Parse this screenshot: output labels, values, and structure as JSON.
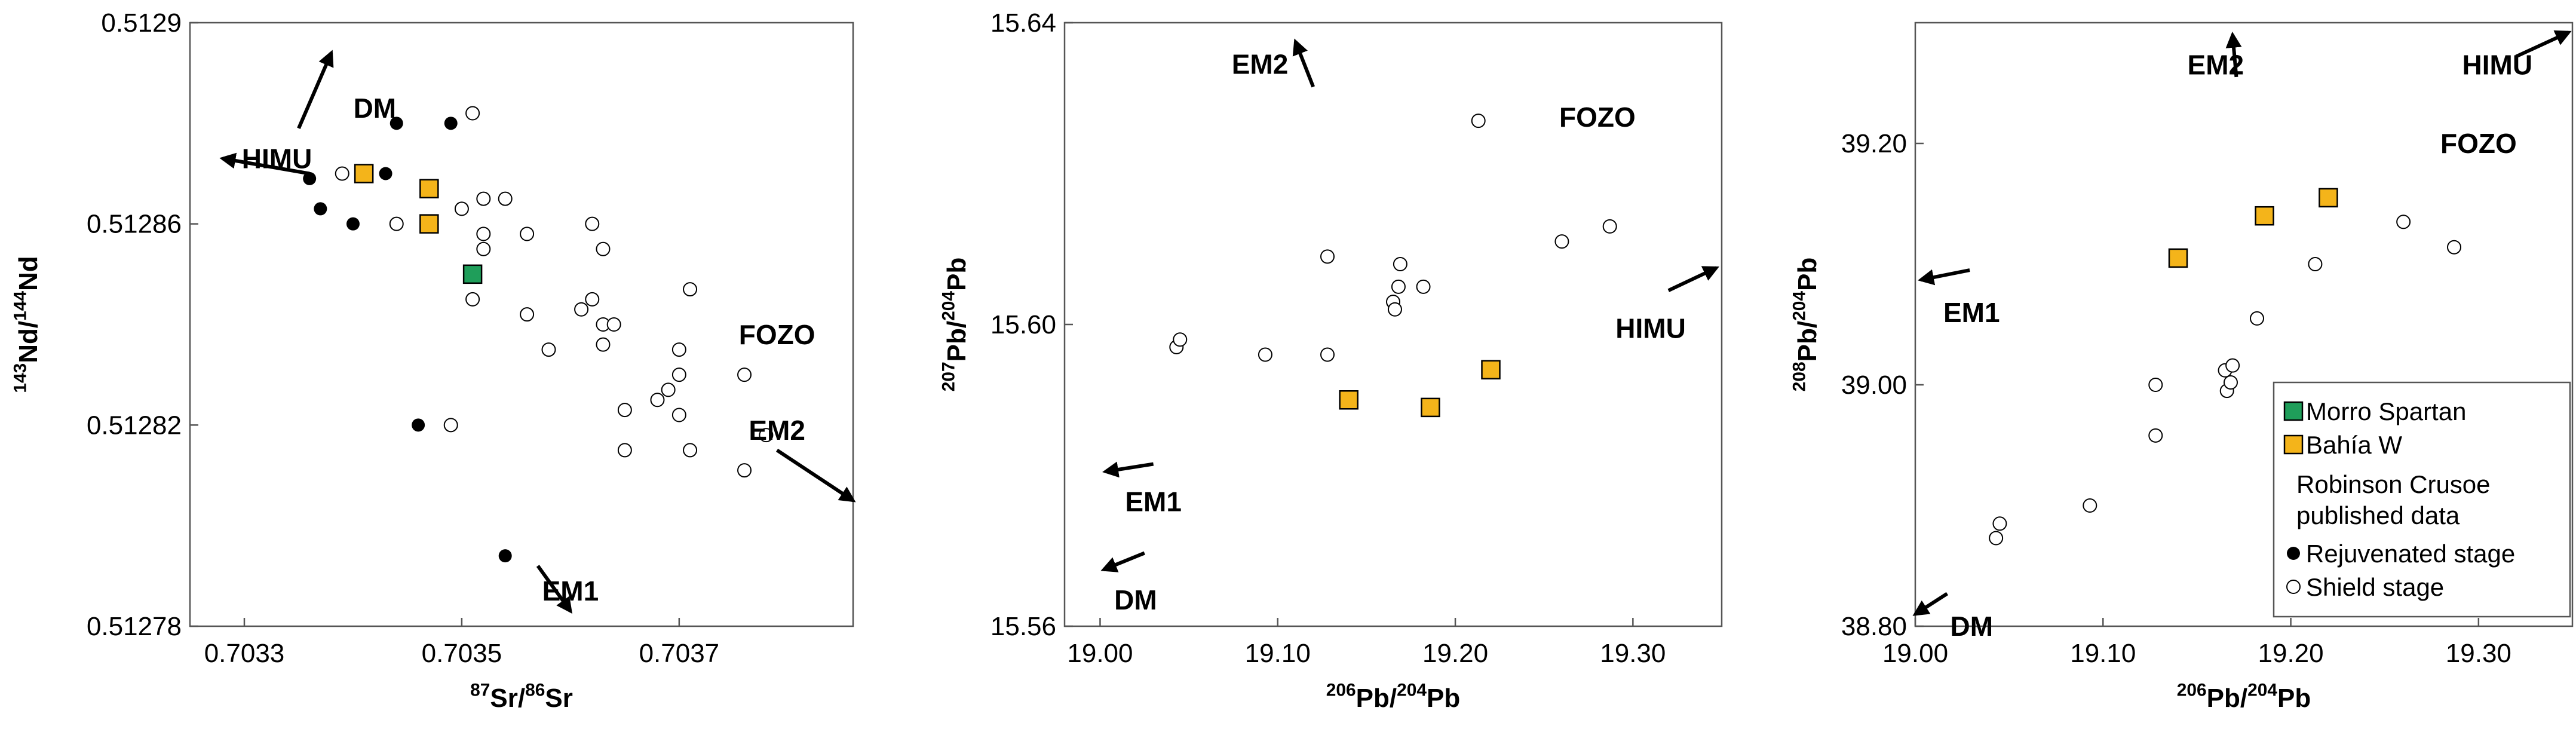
{
  "chart_data": [
    {
      "type": "scatter",
      "xlabel_sup1": "87",
      "xlabel_el1": "Sr/",
      "xlabel_sup2": "86",
      "xlabel_el2": "Sr",
      "ylabel_sup1": "143",
      "ylabel_el1": "Nd/",
      "ylabel_sup2": "144",
      "ylabel_el2": "Nd",
      "xlim": [
        0.70325,
        0.70386
      ],
      "ylim": [
        0.51278,
        0.5129
      ],
      "xticks": [
        {
          "v": 0.7033,
          "label": "0.7033"
        },
        {
          "v": 0.7035,
          "label": "0.7035"
        },
        {
          "v": 0.7037,
          "label": "0.7037"
        }
      ],
      "yticks": [
        {
          "v": 0.51278,
          "label": "0.51278"
        },
        {
          "v": 0.51282,
          "label": "0.51282"
        },
        {
          "v": 0.51286,
          "label": "0.51286"
        },
        {
          "v": 0.5129,
          "label": "0.5129"
        }
      ],
      "series": [
        {
          "name": "Morro Spartan",
          "marker": "square",
          "color": "#1f9e5a",
          "points": [
            [
              0.70351,
              0.51285
            ]
          ]
        },
        {
          "name": "Bahía W",
          "marker": "square",
          "color": "#f4b41a",
          "points": [
            [
              0.70341,
              0.51287
            ],
            [
              0.70347,
              0.512867
            ],
            [
              0.70347,
              0.51286
            ]
          ]
        },
        {
          "name": "Rejuvenated stage",
          "marker": "filled-circle",
          "color": "#000000",
          "points": [
            [
              0.70336,
              0.512869
            ],
            [
              0.70337,
              0.512863
            ],
            [
              0.7034,
              0.51286
            ],
            [
              0.70343,
              0.51287
            ],
            [
              0.70344,
              0.51288
            ],
            [
              0.70349,
              0.51288
            ],
            [
              0.70346,
              0.51282
            ],
            [
              0.70354,
              0.512794
            ]
          ]
        },
        {
          "name": "Shield stage",
          "marker": "open-circle",
          "color": "#000000",
          "points": [
            [
              0.70339,
              0.51287
            ],
            [
              0.70344,
              0.51286
            ],
            [
              0.70351,
              0.512882
            ],
            [
              0.7035,
              0.512863
            ],
            [
              0.70352,
              0.512865
            ],
            [
              0.70354,
              0.512865
            ],
            [
              0.70352,
              0.512858
            ],
            [
              0.70352,
              0.512855
            ],
            [
              0.70351,
              0.512845
            ],
            [
              0.70356,
              0.512858
            ],
            [
              0.70356,
              0.512842
            ],
            [
              0.70358,
              0.512835
            ],
            [
              0.70362,
              0.51286
            ],
            [
              0.70363,
              0.512855
            ],
            [
              0.70361,
              0.512843
            ],
            [
              0.70362,
              0.512845
            ],
            [
              0.70363,
              0.51284
            ],
            [
              0.70364,
              0.51284
            ],
            [
              0.70363,
              0.512836
            ],
            [
              0.70365,
              0.512823
            ],
            [
              0.70365,
              0.512815
            ],
            [
              0.70368,
              0.512825
            ],
            [
              0.70369,
              0.512827
            ],
            [
              0.7037,
              0.51283
            ],
            [
              0.7037,
              0.512835
            ],
            [
              0.7037,
              0.512822
            ],
            [
              0.70371,
              0.512847
            ],
            [
              0.70371,
              0.512815
            ],
            [
              0.70376,
              0.51283
            ],
            [
              0.70376,
              0.512811
            ],
            [
              0.70378,
              0.512818
            ],
            [
              0.70349,
              0.51282
            ]
          ]
        }
      ],
      "annotations": [
        {
          "text": "DM",
          "x": 0.70342,
          "y": 0.512883,
          "ax": [
            0.70335,
            0.70338
          ],
          "ay": [
            0.512879,
            0.512894
          ]
        },
        {
          "text": "HIMU",
          "x": 0.70333,
          "y": 0.512873,
          "ax": [
            0.70336,
            0.70328
          ],
          "ay": [
            0.51287,
            0.512873
          ]
        },
        {
          "text": "FOZO",
          "x": 0.70379,
          "y": 0.512838,
          "ax": null,
          "ay": null
        },
        {
          "text": "EM2",
          "x": 0.70379,
          "y": 0.512819,
          "ax": [
            0.70379,
            0.70386
          ],
          "ay": [
            0.512815,
            0.512805
          ]
        },
        {
          "text": "EM1",
          "x": 0.7036,
          "y": 0.512787,
          "ax": [
            0.70357,
            0.7036
          ],
          "ay": [
            0.512792,
            0.512783
          ]
        }
      ]
    },
    {
      "type": "scatter",
      "xlabel_sup1": "206",
      "xlabel_el1": "Pb/",
      "xlabel_sup2": "204",
      "xlabel_el2": "Pb",
      "ylabel_sup1": "207",
      "ylabel_el1": "Pb/",
      "ylabel_sup2": "204",
      "ylabel_el2": "Pb",
      "xlim": [
        18.98,
        19.35
      ],
      "ylim": [
        15.56,
        15.64
      ],
      "xticks": [
        {
          "v": 19.0,
          "label": "19.00"
        },
        {
          "v": 19.1,
          "label": "19.10"
        },
        {
          "v": 19.2,
          "label": "19.20"
        },
        {
          "v": 19.3,
          "label": "19.30"
        }
      ],
      "yticks": [
        {
          "v": 15.56,
          "label": "15.56"
        },
        {
          "v": 15.6,
          "label": "15.60"
        },
        {
          "v": 15.64,
          "label": "15.64"
        }
      ],
      "series": [
        {
          "name": "Bahía W",
          "marker": "square",
          "color": "#f4b41a",
          "points": [
            [
              19.14,
              15.59
            ],
            [
              19.186,
              15.589
            ],
            [
              19.22,
              15.594
            ]
          ]
        },
        {
          "name": "Shield stage",
          "marker": "open-circle",
          "color": "#000000",
          "points": [
            [
              19.043,
              15.597
            ],
            [
              19.045,
              15.598
            ],
            [
              19.093,
              15.596
            ],
            [
              19.128,
              15.596
            ],
            [
              19.128,
              15.609
            ],
            [
              19.165,
              15.603
            ],
            [
              19.166,
              15.602
            ],
            [
              19.168,
              15.605
            ],
            [
              19.169,
              15.608
            ],
            [
              19.182,
              15.605
            ],
            [
              19.213,
              15.627
            ],
            [
              19.26,
              15.611
            ],
            [
              19.287,
              15.613
            ]
          ]
        }
      ],
      "annotations": [
        {
          "text": "EM2",
          "x": 19.09,
          "y": 15.6345,
          "ax": [
            19.12,
            19.11
          ],
          "ay": [
            15.6315,
            15.6375
          ]
        },
        {
          "text": "FOZO",
          "x": 19.28,
          "y": 15.6275,
          "ax": null,
          "ay": null
        },
        {
          "text": "HIMU",
          "x": 19.31,
          "y": 15.5995,
          "ax": [
            19.32,
            19.347
          ],
          "ay": [
            15.6045,
            15.6075
          ]
        },
        {
          "text": "EM1",
          "x": 19.03,
          "y": 15.5765,
          "ax": [
            19.03,
            19.003
          ],
          "ay": [
            15.5815,
            15.5805
          ]
        },
        {
          "text": "DM",
          "x": 19.02,
          "y": 15.5635,
          "ax": [
            19.025,
            19.002
          ],
          "ay": [
            15.5697,
            15.5675
          ]
        }
      ]
    },
    {
      "type": "scatter",
      "xlabel_sup1": "206",
      "xlabel_el1": "Pb/",
      "xlabel_sup2": "204",
      "xlabel_el2": "Pb",
      "ylabel_sup1": "208",
      "ylabel_el1": "Pb/",
      "ylabel_sup2": "204",
      "ylabel_el2": "Pb",
      "xlim": [
        19.0,
        19.35
      ],
      "ylim": [
        38.8,
        39.3
      ],
      "xticks": [
        {
          "v": 19.0,
          "label": "19.00"
        },
        {
          "v": 19.1,
          "label": "19.10"
        },
        {
          "v": 19.2,
          "label": "19.20"
        },
        {
          "v": 19.3,
          "label": "19.30"
        }
      ],
      "yticks": [
        {
          "v": 38.8,
          "label": "38.80"
        },
        {
          "v": 39.0,
          "label": "39.00"
        },
        {
          "v": 39.2,
          "label": "39.20"
        }
      ],
      "series": [
        {
          "name": "Bahía W",
          "marker": "square",
          "color": "#f4b41a",
          "points": [
            [
              19.14,
              39.105
            ],
            [
              19.186,
              39.14
            ],
            [
              19.22,
              39.155
            ]
          ]
        },
        {
          "name": "Shield stage",
          "marker": "open-circle",
          "color": "#000000",
          "points": [
            [
              19.043,
              38.873
            ],
            [
              19.045,
              38.885
            ],
            [
              19.093,
              38.9
            ],
            [
              19.128,
              38.958
            ],
            [
              19.128,
              39.0
            ],
            [
              19.165,
              39.012
            ],
            [
              19.166,
              38.995
            ],
            [
              19.168,
              39.002
            ],
            [
              19.169,
              39.016
            ],
            [
              19.182,
              39.055
            ],
            [
              19.213,
              39.1
            ],
            [
              19.26,
              39.135
            ],
            [
              19.287,
              39.114
            ]
          ]
        }
      ],
      "annotations": [
        {
          "text": "EM2",
          "x": 19.16,
          "y": 39.265,
          "ax": [
            19.171,
            19.169
          ],
          "ay": [
            39.255,
            39.29
          ]
        },
        {
          "text": "HIMU",
          "x": 19.31,
          "y": 39.265,
          "ax": [
            19.32,
            19.348
          ],
          "ay": [
            39.272,
            39.292
          ]
        },
        {
          "text": "FOZO",
          "x": 19.3,
          "y": 39.2,
          "ax": null,
          "ay": null
        },
        {
          "text": "EM1",
          "x": 19.03,
          "y": 39.06,
          "ax": [
            19.029,
            19.003
          ],
          "ay": [
            39.095,
            39.087
          ]
        },
        {
          "text": "DM",
          "x": 19.03,
          "y": 38.8,
          "ax": [
            19.017,
            19.0
          ],
          "ay": [
            38.827,
            38.81
          ]
        }
      ]
    }
  ],
  "legend": {
    "placement": "bottom-right of third panel",
    "items": [
      {
        "type": "square",
        "color": "#1f9e5a",
        "label": "Morro Spartan"
      },
      {
        "type": "square",
        "color": "#f4b41a",
        "label": "Bahía W"
      },
      {
        "type": "text",
        "label": "Robinson Crusoe"
      },
      {
        "type": "text",
        "label": "published data"
      },
      {
        "type": "filled-circle",
        "color": "#000000",
        "label": "Rejuvenated stage"
      },
      {
        "type": "open-circle",
        "color": "#000000",
        "label": "Shield stage"
      }
    ]
  }
}
